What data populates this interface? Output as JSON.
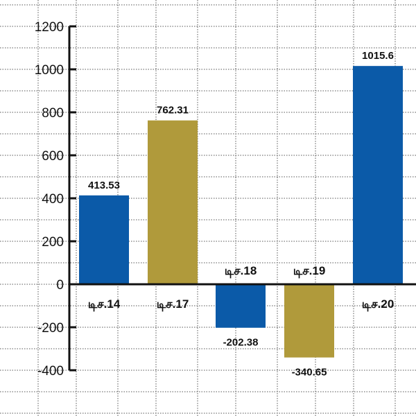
{
  "chart_data": {
    "type": "bar",
    "categories": [
      "டிச.14",
      "டிச.17",
      "டிச.18",
      "டிச.19",
      "டிச.20"
    ],
    "values": [
      413.53,
      762.31,
      -202.38,
      -340.65,
      1015.6
    ],
    "value_labels": [
      "413.53",
      "762.31",
      "-202.38",
      "-340.65",
      "1015.6"
    ],
    "bar_colors": [
      "#0b5aa8",
      "#b09a3b",
      "#0b5aa8",
      "#b09a3b",
      "#0b5aa8"
    ],
    "ylim": [
      -400,
      1200
    ],
    "yticks": [
      -400,
      -200,
      0,
      200,
      400,
      600,
      800,
      1000,
      1200
    ],
    "ytick_labels": [
      "-400",
      "-200",
      "0",
      "200",
      "400",
      "600",
      "800",
      "1000",
      "1200"
    ],
    "grid": true,
    "title": "",
    "xlabel": "",
    "ylabel": ""
  }
}
